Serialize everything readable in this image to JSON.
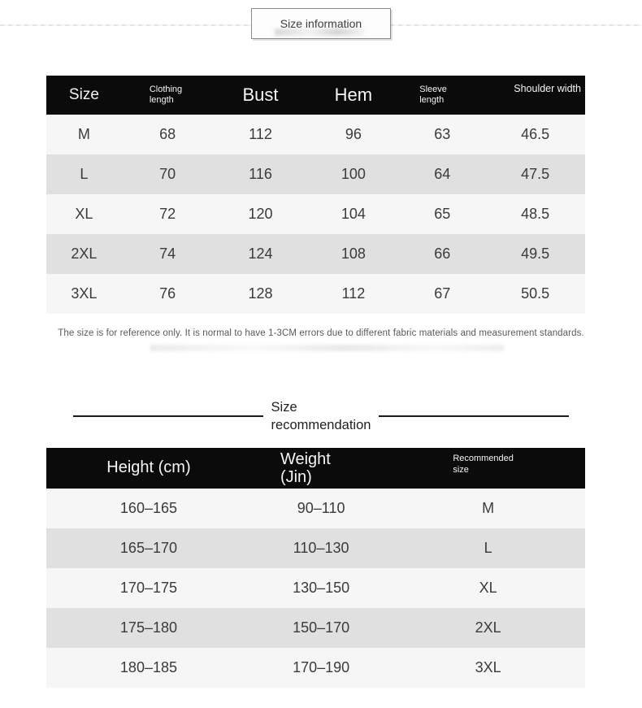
{
  "page": {
    "title_box_label": "Size information",
    "note": "The size is for reference only. It is normal to have 1-3CM errors due to different fabric materials and measurement standards.",
    "section_heading": "Size\nrecommendation"
  },
  "colors": {
    "table_header_bg": "#0b0b0b",
    "table_header_text": "#f5f5f5",
    "row_light": "#f6f6f6",
    "row_stripe": "#e0e0e0",
    "heading_rule": "#1c1c1c"
  },
  "size_table": {
    "headers": [
      "Size",
      "Clothing\nlength",
      "Bust",
      "Hem",
      "Sleeve\nlength",
      "Shoulder width"
    ],
    "rows": [
      [
        "M",
        "68",
        "112",
        "96",
        "63",
        "46.5"
      ],
      [
        "L",
        "70",
        "116",
        "100",
        "64",
        "47.5"
      ],
      [
        "XL",
        "72",
        "120",
        "104",
        "65",
        "48.5"
      ],
      [
        "2XL",
        "74",
        "124",
        "108",
        "66",
        "49.5"
      ],
      [
        "3XL",
        "76",
        "128",
        "112",
        "67",
        "50.5"
      ]
    ]
  },
  "rec_table": {
    "headers": [
      "Height (cm)",
      "Weight\n(Jin)",
      "Recommended\nsize"
    ],
    "rows": [
      [
        "160–165",
        "90–110",
        "M"
      ],
      [
        "165–170",
        "110–130",
        "L"
      ],
      [
        "170–175",
        "130–150",
        "XL"
      ],
      [
        "175–180",
        "150–170",
        "2XL"
      ],
      [
        "180–185",
        "170–190",
        "3XL"
      ]
    ]
  }
}
